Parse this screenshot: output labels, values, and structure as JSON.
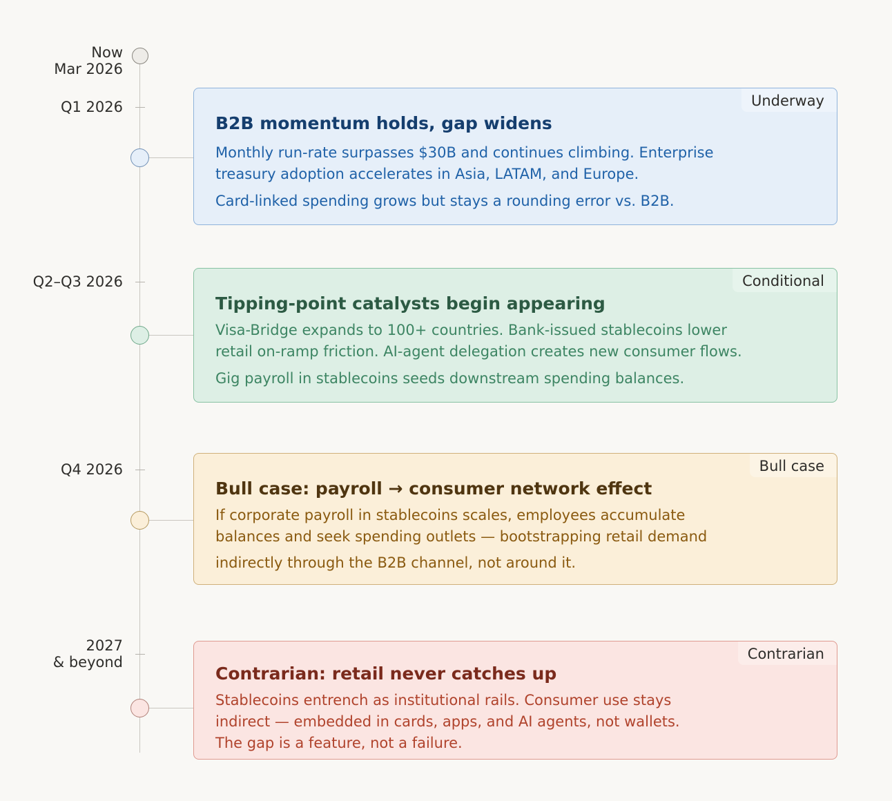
{
  "timeline": {
    "markers": [
      {
        "line1": "Now",
        "line2": "Mar 2026"
      },
      {
        "line1": "Q1 2026"
      },
      {
        "line1": "Q2–Q3 2026"
      },
      {
        "line1": "Q4 2026"
      },
      {
        "line1": "2027",
        "line2": "& beyond"
      }
    ]
  },
  "cards": [
    {
      "badge": "Underway",
      "title": "B2B momentum holds, gap widens",
      "p1": "Monthly run-rate surpasses $30B and continues climbing. Enterprise treasury adoption accelerates in Asia, LATAM, and Europe.",
      "p2": "Card-linked spending grows but stays a rounding error vs. B2B.",
      "colors": {
        "bg": "#e6eff9",
        "border": "#8fb3db",
        "title": "#153e6e",
        "text": "#2062a8"
      }
    },
    {
      "badge": "Conditional",
      "title": "Tipping-point catalysts begin appearing",
      "p1": "Visa-Bridge expands to 100+ countries. Bank-issued stablecoins lower retail on-ramp friction. AI-agent delegation creates new consumer flows.",
      "p2": "Gig payroll in stablecoins seeds downstream spending balances.",
      "colors": {
        "bg": "#ddefe5",
        "border": "#87c2a2",
        "title": "#2c5a43",
        "text": "#3d8563"
      }
    },
    {
      "badge": "Bull case",
      "title": "Bull case: payroll → consumer network effect",
      "p1": "If corporate payroll in stablecoins scales, employees accumulate balances and seek spending outlets — bootstrapping retail demand",
      "p2": "indirectly through the B2B channel, not around it.",
      "colors": {
        "bg": "#fbefd9",
        "border": "#cfb07a",
        "title": "#4f3510",
        "text": "#8a5a10"
      }
    },
    {
      "badge": "Contrarian",
      "title": "Contrarian: retail never catches up",
      "p1": "Stablecoins entrench as institutional rails. Consumer use stays indirect — embedded in cards, apps, and AI agents, not wallets.",
      "p2": "The gap is a feature, not a failure.",
      "colors": {
        "bg": "#fbe5e2",
        "border": "#df9a90",
        "title": "#7a2a1c",
        "text": "#b0432c"
      }
    }
  ]
}
